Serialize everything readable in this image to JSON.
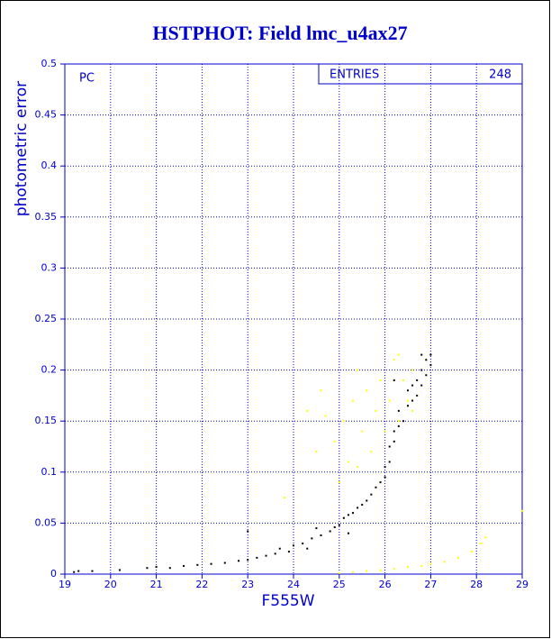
{
  "chart_data": {
    "type": "scatter",
    "title": "HSTPHOT: Field lmc_u4ax27",
    "xlabel": "F555W",
    "ylabel": "photometric error",
    "annotation": "PC",
    "legend_label": "ENTRIES",
    "legend_value": "248",
    "xlim": [
      19,
      29
    ],
    "ylim": [
      0,
      0.5
    ],
    "xticks": [
      19,
      20,
      21,
      22,
      23,
      24,
      25,
      26,
      27,
      28,
      29
    ],
    "yticks": [
      0,
      0.05,
      0.1,
      0.15,
      0.2,
      0.25,
      0.3,
      0.35,
      0.4,
      0.45,
      0.5
    ],
    "grid": true,
    "series": [
      {
        "color": "#000000",
        "x": [
          19.2,
          19.3,
          19.6,
          20.2,
          20.8,
          21.0,
          21.3,
          21.6,
          21.9,
          22.2,
          22.5,
          22.8,
          23.0,
          23.0,
          23.2,
          23.4,
          23.6,
          23.7,
          23.9,
          24.0,
          24.2,
          24.4,
          24.5,
          24.6,
          24.8,
          24.9,
          25.0,
          25.1,
          25.2,
          25.3,
          25.4,
          25.5,
          25.6,
          25.7,
          25.8,
          25.9,
          26.0,
          26.0,
          26.1,
          26.1,
          26.2,
          26.2,
          26.3,
          26.3,
          26.4,
          26.5,
          26.5,
          26.6,
          26.6,
          26.7,
          26.7,
          26.8,
          26.8,
          26.9,
          26.9,
          27.0,
          27.0,
          26.8,
          26.2,
          25.2,
          24.3
        ],
        "values": [
          0.002,
          0.003,
          0.003,
          0.004,
          0.006,
          0.007,
          0.006,
          0.008,
          0.009,
          0.01,
          0.011,
          0.013,
          0.014,
          0.042,
          0.016,
          0.018,
          0.02,
          0.025,
          0.022,
          0.028,
          0.03,
          0.035,
          0.045,
          0.038,
          0.042,
          0.046,
          0.048,
          0.055,
          0.058,
          0.06,
          0.065,
          0.068,
          0.072,
          0.078,
          0.085,
          0.09,
          0.095,
          0.105,
          0.11,
          0.125,
          0.13,
          0.14,
          0.145,
          0.16,
          0.15,
          0.165,
          0.18,
          0.17,
          0.185,
          0.175,
          0.19,
          0.2,
          0.185,
          0.21,
          0.195,
          0.215,
          0.205,
          0.215,
          0.19,
          0.04,
          0.025
        ]
      },
      {
        "color": "#ffff00",
        "x": [
          25.0,
          25.3,
          25.6,
          25.9,
          26.2,
          26.5,
          26.8,
          27.0,
          27.3,
          27.6,
          27.9,
          28.1,
          28.2,
          29.0,
          24.5,
          24.6,
          24.7,
          24.9,
          25.0,
          25.1,
          25.2,
          25.3,
          25.4,
          25.5,
          25.6,
          25.7,
          25.8,
          25.9,
          26.0,
          26.1,
          26.2,
          26.3,
          26.4,
          26.5,
          26.6,
          26.6,
          23.8,
          24.3,
          25.4,
          26.3
        ],
        "values": [
          0.001,
          0.002,
          0.003,
          0.004,
          0.005,
          0.007,
          0.008,
          0.01,
          0.012,
          0.016,
          0.022,
          0.03,
          0.036,
          0.062,
          0.12,
          0.18,
          0.155,
          0.13,
          0.09,
          0.15,
          0.11,
          0.17,
          0.2,
          0.14,
          0.18,
          0.12,
          0.16,
          0.19,
          0.14,
          0.17,
          0.21,
          0.15,
          0.19,
          0.17,
          0.16,
          0.2,
          0.075,
          0.16,
          0.105,
          0.215
        ]
      }
    ]
  }
}
